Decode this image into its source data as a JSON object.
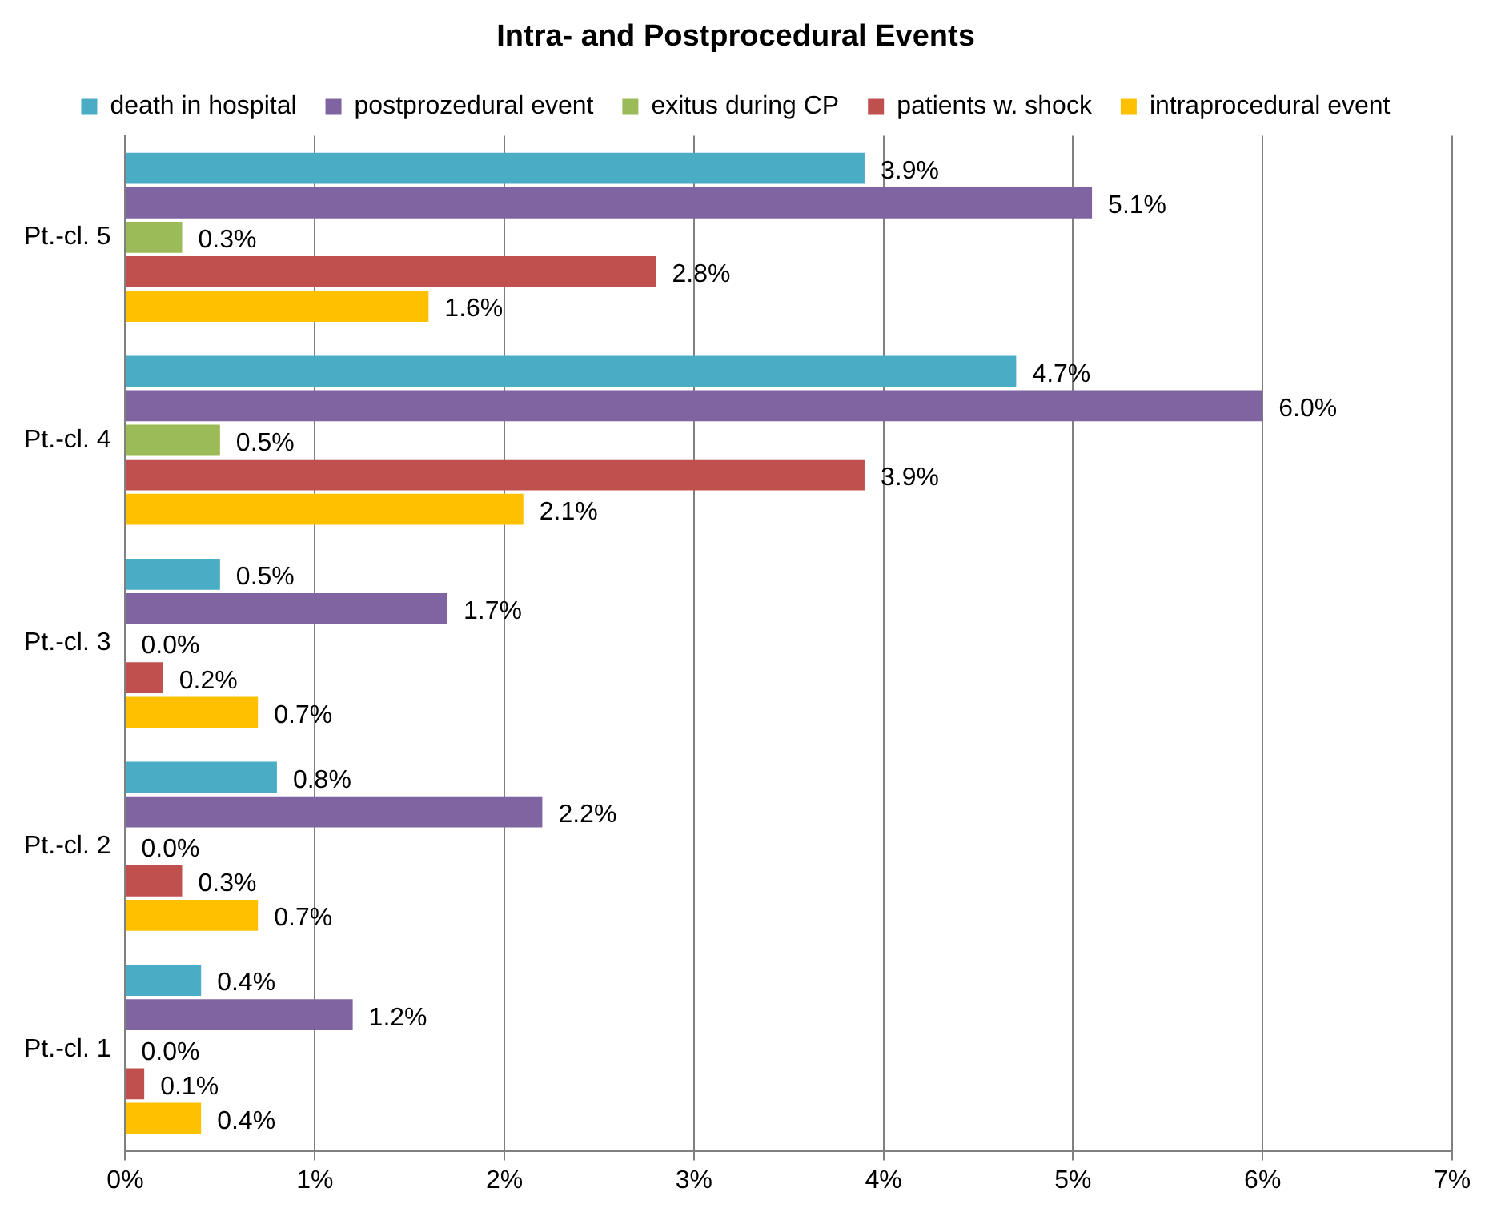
{
  "chart_data": {
    "type": "bar",
    "orientation": "horizontal",
    "title": "Intra- and Postprocedural Events",
    "categories": [
      "Pt.-cl. 5",
      "Pt.-cl. 4",
      "Pt.-cl. 3",
      "Pt.-cl. 2",
      "Pt.-cl. 1"
    ],
    "series": [
      {
        "name": "death in hospital",
        "color": "#4bacc6",
        "values": [
          3.9,
          4.7,
          0.5,
          0.8,
          0.4
        ],
        "value_labels": [
          "3.9%",
          "4.7%",
          "0.5%",
          "0.8%",
          "0.4%"
        ]
      },
      {
        "name": "postprozedural event",
        "color": "#8064a2",
        "values": [
          5.1,
          6.0,
          1.7,
          2.2,
          1.2
        ],
        "value_labels": [
          "5.1%",
          "6.0%",
          "1.7%",
          "2.2%",
          "1.2%"
        ]
      },
      {
        "name": "exitus during CP",
        "color": "#9bbb59",
        "values": [
          0.3,
          0.5,
          0.0,
          0.0,
          0.0
        ],
        "value_labels": [
          "0.3%",
          "0.5%",
          "0.0%",
          "0.0%",
          "0.0%"
        ]
      },
      {
        "name": "patients w. shock",
        "color": "#c0504d",
        "values": [
          2.8,
          3.9,
          0.2,
          0.3,
          0.1
        ],
        "value_labels": [
          "2.8%",
          "3.9%",
          "0.2%",
          "0.3%",
          "0.1%"
        ]
      },
      {
        "name": "intraprocedural event",
        "color": "#ffc000",
        "values": [
          1.6,
          2.1,
          0.7,
          0.7,
          0.4
        ],
        "value_labels": [
          "1.6%",
          "2.1%",
          "0.7%",
          "0.7%",
          "0.4%"
        ]
      }
    ],
    "xlim": [
      0,
      7
    ],
    "xticks": [
      {
        "value": 0,
        "label": "0%"
      },
      {
        "value": 1,
        "label": "1%"
      },
      {
        "value": 2,
        "label": "2%"
      },
      {
        "value": 3,
        "label": "3%"
      },
      {
        "value": 4,
        "label": "4%"
      },
      {
        "value": 5,
        "label": "5%"
      },
      {
        "value": 6,
        "label": "6%"
      },
      {
        "value": 7,
        "label": "7%"
      }
    ],
    "grid": "x",
    "legend": "top"
  }
}
